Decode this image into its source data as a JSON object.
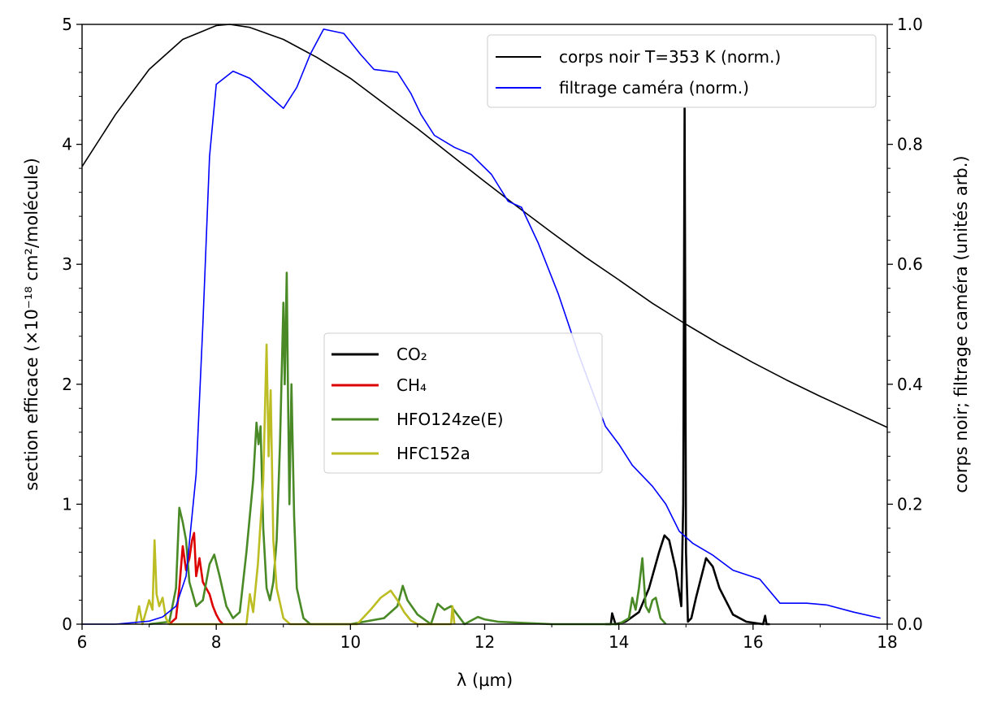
{
  "chart_data": {
    "type": "line",
    "xlabel": "λ (µm)",
    "xlim": [
      6,
      18
    ],
    "x_ticks": [
      "6",
      "8",
      "10",
      "12",
      "14",
      "16",
      "18"
    ],
    "y_left": {
      "label": "section efficace (×10⁻¹⁸ cm²/molécule)",
      "ylim": [
        0,
        5
      ],
      "ticks": [
        "0",
        "1",
        "2",
        "3",
        "4",
        "5"
      ]
    },
    "y_right": {
      "label": "corps noir; filtrage caméra (unités arb.)",
      "ylim": [
        0,
        1
      ],
      "ticks": [
        "0.0",
        "0.2",
        "0.4",
        "0.6",
        "0.8",
        "1.0"
      ]
    },
    "legend_upper": {
      "placement": "top-right",
      "entries": [
        "corps noir T=353 K (norm.)",
        "filtrage caméra (norm.)"
      ]
    },
    "legend_center": {
      "placement": "center",
      "entries": [
        "CO₂",
        "CH₄",
        "HFO124ze(E)",
        "HFC152a"
      ]
    },
    "series": [
      {
        "name": "corps noir T=353 K (norm.)",
        "axis": "right",
        "color": "#000000",
        "x": [
          6.0,
          6.5,
          7.0,
          7.5,
          8.0,
          8.2,
          8.5,
          9.0,
          9.5,
          10.0,
          10.5,
          11.0,
          11.5,
          12.0,
          12.5,
          13.0,
          13.5,
          14.0,
          14.5,
          15.0,
          15.5,
          16.0,
          16.5,
          17.0,
          17.5,
          18.0
        ],
        "y": [
          0.763,
          0.85,
          0.925,
          0.975,
          0.998,
          1.0,
          0.995,
          0.975,
          0.945,
          0.91,
          0.868,
          0.826,
          0.782,
          0.738,
          0.695,
          0.653,
          0.612,
          0.574,
          0.535,
          0.5,
          0.467,
          0.436,
          0.407,
          0.38,
          0.354,
          0.328
        ]
      },
      {
        "name": "filtrage caméra (norm.)",
        "axis": "right",
        "color": "#0000ff",
        "x": [
          6.0,
          6.5,
          7.0,
          7.2,
          7.4,
          7.55,
          7.7,
          7.8,
          7.9,
          8.0,
          8.25,
          8.5,
          8.8,
          9.0,
          9.2,
          9.4,
          9.6,
          9.9,
          10.15,
          10.35,
          10.7,
          10.9,
          11.05,
          11.25,
          11.55,
          11.8,
          12.1,
          12.35,
          12.55,
          12.8,
          13.1,
          13.4,
          13.8,
          14.0,
          14.2,
          14.5,
          14.7,
          14.9,
          15.1,
          15.4,
          15.7,
          16.1,
          16.4,
          16.8,
          17.1,
          17.5,
          17.9
        ],
        "y": [
          0.0,
          0.0,
          0.005,
          0.012,
          0.03,
          0.08,
          0.25,
          0.5,
          0.78,
          0.9,
          0.922,
          0.91,
          0.88,
          0.86,
          0.895,
          0.95,
          0.992,
          0.985,
          0.95,
          0.925,
          0.92,
          0.885,
          0.85,
          0.815,
          0.795,
          0.783,
          0.75,
          0.705,
          0.695,
          0.635,
          0.55,
          0.45,
          0.33,
          0.3,
          0.265,
          0.23,
          0.2,
          0.155,
          0.135,
          0.115,
          0.09,
          0.075,
          0.035,
          0.035,
          0.032,
          0.02,
          0.01
        ]
      },
      {
        "name": "CO₂",
        "axis": "left",
        "color": "#000000",
        "x": [
          13.8,
          13.88,
          13.9,
          13.95,
          14.1,
          14.3,
          14.45,
          14.6,
          14.68,
          14.75,
          14.85,
          14.93,
          14.96,
          14.98,
          15.0,
          15.03,
          15.08,
          15.15,
          15.3,
          15.4,
          15.5,
          15.7,
          15.9,
          16.15,
          16.18,
          16.2,
          16.25
        ],
        "y": [
          0.0,
          0.0,
          0.09,
          0.0,
          0.02,
          0.1,
          0.3,
          0.6,
          0.74,
          0.7,
          0.45,
          0.15,
          1.0,
          4.3,
          0.6,
          0.02,
          0.05,
          0.22,
          0.55,
          0.48,
          0.3,
          0.08,
          0.02,
          0.0,
          0.07,
          0.0,
          0.0
        ]
      },
      {
        "name": "CH₄",
        "axis": "left",
        "color": "#dd0000",
        "x": [
          7.3,
          7.4,
          7.45,
          7.5,
          7.55,
          7.6,
          7.64,
          7.67,
          7.7,
          7.75,
          7.8,
          7.85,
          7.9,
          7.95,
          8.0,
          8.05,
          8.1
        ],
        "y": [
          0.0,
          0.05,
          0.3,
          0.65,
          0.45,
          0.55,
          0.7,
          0.76,
          0.4,
          0.55,
          0.35,
          0.3,
          0.25,
          0.15,
          0.08,
          0.03,
          0.0
        ]
      },
      {
        "name": "HFO124ze(E)",
        "axis": "left",
        "color": "#4a8a26",
        "x": [
          7.0,
          7.3,
          7.4,
          7.45,
          7.5,
          7.55,
          7.6,
          7.7,
          7.8,
          7.9,
          7.97,
          8.05,
          8.15,
          8.25,
          8.35,
          8.45,
          8.55,
          8.6,
          8.63,
          8.66,
          8.7,
          8.75,
          8.8,
          8.85,
          8.9,
          8.95,
          9.0,
          9.02,
          9.05,
          9.07,
          9.09,
          9.12,
          9.16,
          9.2,
          9.3,
          9.4,
          9.6,
          10.0,
          10.5,
          10.7,
          10.78,
          10.85,
          11.0,
          11.2,
          11.3,
          11.4,
          11.5,
          11.7,
          11.9,
          12.0,
          12.2,
          13.0,
          14.0,
          14.15,
          14.2,
          14.25,
          14.3,
          14.35,
          14.4,
          14.45,
          14.5,
          14.55,
          14.62,
          14.7
        ],
        "y": [
          0.0,
          0.02,
          0.3,
          0.97,
          0.85,
          0.7,
          0.35,
          0.15,
          0.2,
          0.5,
          0.58,
          0.4,
          0.15,
          0.05,
          0.1,
          0.6,
          1.2,
          1.68,
          1.5,
          1.65,
          0.8,
          0.3,
          0.2,
          0.35,
          0.7,
          1.5,
          2.68,
          2.0,
          2.93,
          1.9,
          1.0,
          2.0,
          0.9,
          0.3,
          0.05,
          0.0,
          0.0,
          0.0,
          0.05,
          0.15,
          0.32,
          0.2,
          0.08,
          0.0,
          0.17,
          0.12,
          0.15,
          0.0,
          0.06,
          0.04,
          0.02,
          0.0,
          0.0,
          0.05,
          0.22,
          0.12,
          0.3,
          0.55,
          0.15,
          0.1,
          0.2,
          0.22,
          0.05,
          0.0
        ]
      },
      {
        "name": "HFC152a",
        "axis": "left",
        "color": "#bcbd22",
        "x": [
          6.8,
          6.85,
          6.9,
          6.95,
          7.0,
          7.05,
          7.08,
          7.11,
          7.15,
          7.2,
          7.25,
          7.3,
          8.45,
          8.5,
          8.55,
          8.62,
          8.7,
          8.75,
          8.78,
          8.81,
          8.85,
          8.9,
          9.0,
          9.1,
          9.2,
          10.1,
          10.3,
          10.45,
          10.6,
          10.7,
          10.8,
          10.9,
          11.0,
          11.5,
          11.52,
          11.55
        ],
        "y": [
          0.0,
          0.15,
          0.0,
          0.1,
          0.2,
          0.12,
          0.7,
          0.25,
          0.15,
          0.22,
          0.05,
          0.0,
          0.0,
          0.25,
          0.1,
          0.5,
          1.2,
          2.33,
          1.4,
          1.95,
          0.7,
          0.3,
          0.05,
          0.0,
          0.0,
          0.0,
          0.12,
          0.22,
          0.28,
          0.2,
          0.1,
          0.03,
          0.0,
          0.0,
          0.15,
          0.0
        ]
      }
    ]
  }
}
